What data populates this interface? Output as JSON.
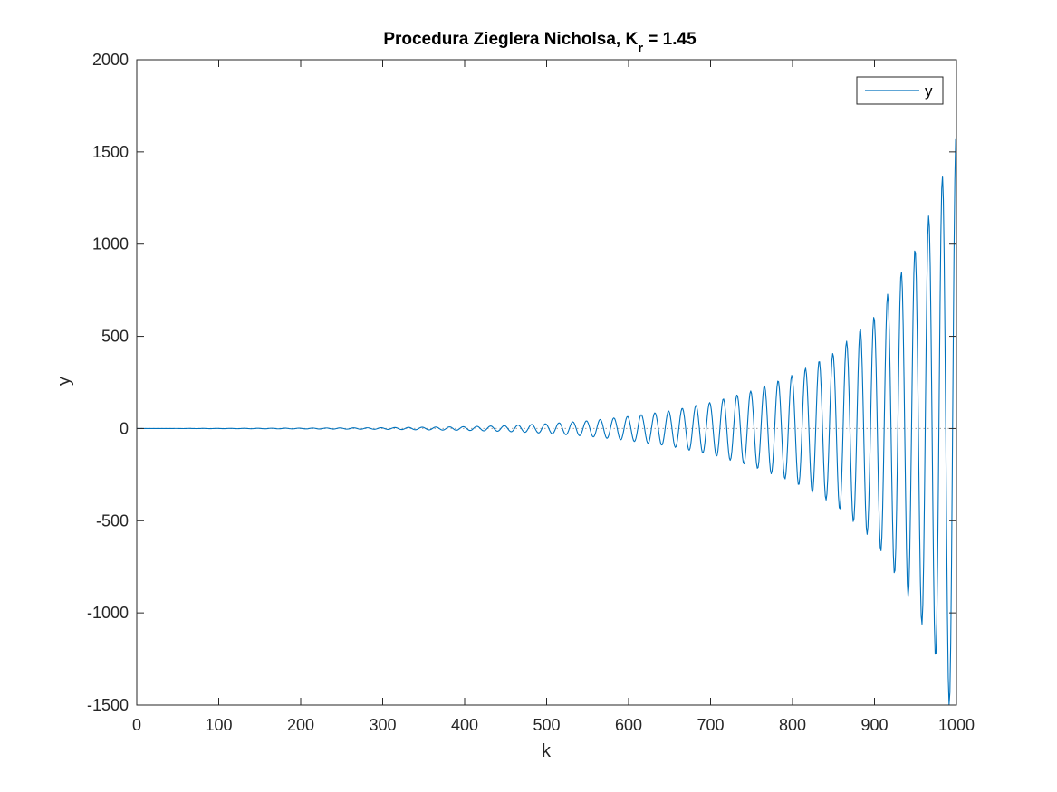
{
  "chart_data": {
    "type": "line",
    "title": {
      "main": "Procedura Zieglera Nicholsa, K",
      "subscript": "r",
      "suffix": " =  1.45"
    },
    "xlabel": "k",
    "ylabel": "y",
    "xlim": [
      0,
      1000
    ],
    "ylim": [
      -1500,
      2000
    ],
    "xticks": [
      0,
      100,
      200,
      300,
      400,
      500,
      600,
      700,
      800,
      900,
      1000
    ],
    "yticks": [
      -1500,
      -1000,
      -500,
      0,
      500,
      1000,
      1500,
      2000
    ],
    "grid": false,
    "legend": {
      "position": "top-right",
      "entries": [
        "y"
      ]
    },
    "zero_reference_line": {
      "y": 0,
      "style": "dotted",
      "color": "#a0a0a0"
    },
    "series": [
      {
        "name": "y",
        "color": "#0072BD",
        "envelope": {
          "k": [
            0,
            100,
            200,
            300,
            400,
            450,
            500,
            550,
            600,
            650,
            700,
            750,
            800,
            850,
            900,
            950,
            975,
            995,
            1000
          ],
          "amplitude": [
            0,
            0.6,
            2,
            4.5,
            10,
            16,
            26,
            42,
            66,
            96,
            142,
            205,
            290,
            410,
            610,
            980,
            1250,
            1560,
            1600
          ]
        },
        "oscillation_period_k": 16.7,
        "phase_k": 10,
        "sample_step": 1
      }
    ],
    "colors": {
      "axes": "#262626",
      "background": "#ffffff",
      "line": "#0072BD"
    }
  }
}
